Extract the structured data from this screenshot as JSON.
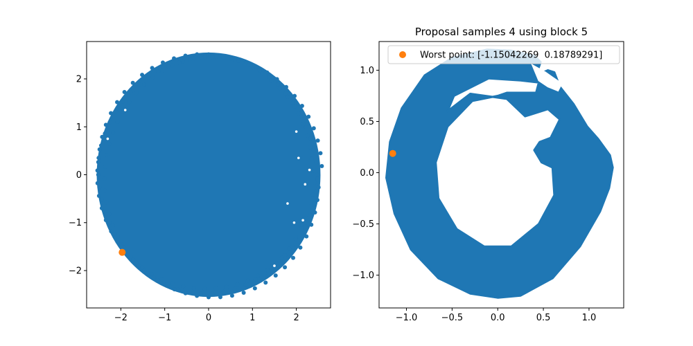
{
  "chart_data": [
    {
      "type": "scatter",
      "title": "",
      "xlabel": "",
      "ylabel": "",
      "xlim": [
        -2.78,
        2.78
      ],
      "ylim": [
        -2.78,
        2.78
      ],
      "xticks": [
        -2,
        -1,
        0,
        1,
        2
      ],
      "yticks": [
        -2,
        -1,
        0,
        1,
        2
      ],
      "xtick_labels": [
        "−2",
        "−1",
        "0",
        "1",
        "2"
      ],
      "ytick_labels": [
        "−2",
        "−1",
        "0",
        "1",
        "2"
      ],
      "grid": false,
      "series": [
        {
          "role": "samples",
          "color": "#1f77b4",
          "shape": "disk",
          "center": [
            0.0,
            0.0
          ],
          "radius": 2.55
        },
        {
          "role": "highlight",
          "color": "#ff7f0e",
          "points": [
            {
              "x": -1.97,
              "y": -1.62
            }
          ]
        }
      ]
    },
    {
      "type": "scatter",
      "title": "Proposal samples 4 using block 5",
      "xlabel": "",
      "ylabel": "",
      "xlim": [
        -1.3,
        1.38
      ],
      "ylim": [
        -1.32,
        1.28
      ],
      "xticks": [
        -1.0,
        -0.5,
        0.0,
        0.5,
        1.0
      ],
      "yticks": [
        -1.0,
        -0.5,
        0.0,
        0.5,
        1.0
      ],
      "xtick_labels": [
        "−1.0",
        "−0.5",
        "0.0",
        "0.5",
        "1.0"
      ],
      "ytick_labels": [
        "−1.0",
        "−0.5",
        "0.0",
        "0.5",
        "1.0"
      ],
      "grid": false,
      "legend_position": "top-right",
      "series": [
        {
          "role": "samples",
          "color": "#1f77b4",
          "shape": "ring with gap on the right",
          "outer_outline": [
            [
              -0.12,
              1.2
            ],
            [
              0.15,
              1.19
            ],
            [
              0.4,
              1.14
            ],
            [
              0.47,
              1.08
            ],
            [
              0.42,
              0.95
            ],
            [
              0.55,
              1.0
            ],
            [
              0.62,
              0.98
            ],
            [
              0.68,
              0.84
            ],
            [
              0.83,
              0.67
            ],
            [
              0.98,
              0.45
            ],
            [
              1.1,
              0.33
            ],
            [
              1.23,
              0.17
            ],
            [
              1.26,
              0.05
            ],
            [
              1.22,
              -0.15
            ],
            [
              1.12,
              -0.38
            ],
            [
              0.9,
              -0.72
            ],
            [
              0.6,
              -1.03
            ],
            [
              0.25,
              -1.2
            ],
            [
              0.0,
              -1.22
            ],
            [
              -0.3,
              -1.18
            ],
            [
              -0.65,
              -1.03
            ],
            [
              -0.95,
              -0.75
            ],
            [
              -1.13,
              -0.4
            ],
            [
              -1.22,
              -0.05
            ],
            [
              -1.18,
              0.3
            ],
            [
              -1.05,
              0.63
            ],
            [
              -0.8,
              0.95
            ],
            [
              -0.5,
              1.12
            ]
          ],
          "inner_outline": [
            [
              -0.1,
              0.92
            ],
            [
              0.25,
              0.9
            ],
            [
              0.45,
              0.88
            ],
            [
              0.42,
              0.78
            ],
            [
              0.35,
              0.78
            ],
            [
              0.1,
              0.78
            ],
            [
              0.0,
              0.75
            ],
            [
              -0.28,
              0.7
            ],
            [
              -0.55,
              0.45
            ],
            [
              -0.68,
              0.1
            ],
            [
              -0.65,
              -0.25
            ],
            [
              -0.45,
              -0.55
            ],
            [
              -0.15,
              -0.72
            ],
            [
              0.15,
              -0.72
            ],
            [
              0.45,
              -0.5
            ],
            [
              0.62,
              -0.22
            ],
            [
              0.6,
              0.05
            ],
            [
              0.48,
              0.1
            ],
            [
              0.4,
              0.22
            ],
            [
              0.46,
              0.3
            ],
            [
              0.58,
              0.34
            ],
            [
              0.68,
              0.52
            ],
            [
              0.55,
              0.62
            ],
            [
              0.3,
              0.55
            ],
            [
              0.1,
              0.72
            ],
            [
              -0.3,
              0.77
            ],
            [
              -0.55,
              0.6
            ],
            [
              -0.48,
              0.75
            ]
          ],
          "gap": [
            [
              0.38,
              1.05
            ],
            [
              0.52,
              0.98
            ],
            [
              0.6,
              0.93
            ],
            [
              0.7,
              0.87
            ],
            [
              0.66,
              0.8
            ],
            [
              0.55,
              0.84
            ],
            [
              0.45,
              0.9
            ]
          ]
        },
        {
          "role": "highlight",
          "name": "Worst point: [-1.15042269  0.18789291]",
          "color": "#ff7f0e",
          "points": [
            {
              "x": -1.15042269,
              "y": 0.18789291
            }
          ]
        }
      ]
    }
  ]
}
